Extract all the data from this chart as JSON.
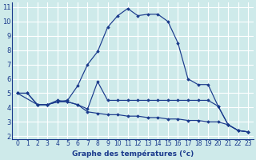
{
  "xlabel": "Graphe des températures (°c)",
  "background_color": "#ceeaea",
  "line_color": "#1a3a8c",
  "grid_color": "#ffffff",
  "xlim": [
    -0.5,
    23.5
  ],
  "ylim": [
    1.8,
    11.3
  ],
  "x_ticks": [
    0,
    1,
    2,
    3,
    4,
    5,
    6,
    7,
    8,
    9,
    10,
    11,
    12,
    13,
    14,
    15,
    16,
    17,
    18,
    19,
    20,
    21,
    22,
    23
  ],
  "y_ticks": [
    2,
    3,
    4,
    5,
    6,
    7,
    8,
    9,
    10,
    11
  ],
  "line1_x": [
    0,
    1,
    2,
    3,
    4,
    5,
    6,
    7,
    8,
    9,
    10,
    11,
    12,
    13,
    14,
    15,
    16,
    17,
    18,
    19,
    20,
    21,
    22,
    23
  ],
  "line1_y": [
    5.0,
    5.0,
    4.2,
    4.2,
    4.4,
    4.5,
    5.5,
    7.0,
    7.9,
    9.6,
    10.4,
    10.9,
    10.4,
    10.5,
    10.5,
    10.0,
    8.5,
    6.0,
    5.6,
    5.6,
    4.1,
    2.8,
    2.4,
    2.3
  ],
  "line2_x": [
    0,
    1,
    2,
    3,
    4,
    5,
    6,
    7,
    8,
    9,
    10,
    11,
    12,
    13,
    14,
    15,
    16,
    17,
    18,
    19,
    20,
    21,
    22,
    23
  ],
  "line2_y": [
    5.0,
    5.0,
    4.2,
    4.2,
    4.5,
    4.4,
    4.2,
    3.7,
    3.6,
    3.5,
    3.5,
    3.4,
    3.4,
    3.3,
    3.3,
    3.2,
    3.2,
    3.1,
    3.1,
    3.0,
    3.0,
    2.8,
    2.4,
    2.3
  ],
  "line3_x": [
    0,
    2,
    3,
    4,
    5,
    6,
    7,
    8,
    9,
    10,
    11,
    12,
    13,
    14,
    15,
    16,
    17,
    18,
    19,
    20,
    21,
    22,
    23
  ],
  "line3_y": [
    5.0,
    4.2,
    4.2,
    4.4,
    4.4,
    4.2,
    3.9,
    5.8,
    4.5,
    4.5,
    4.5,
    4.5,
    4.5,
    4.5,
    4.5,
    4.5,
    4.5,
    4.5,
    4.5,
    4.1,
    2.8,
    2.4,
    2.3
  ],
  "tick_fontsize": 5.5,
  "xlabel_fontsize": 6.5
}
